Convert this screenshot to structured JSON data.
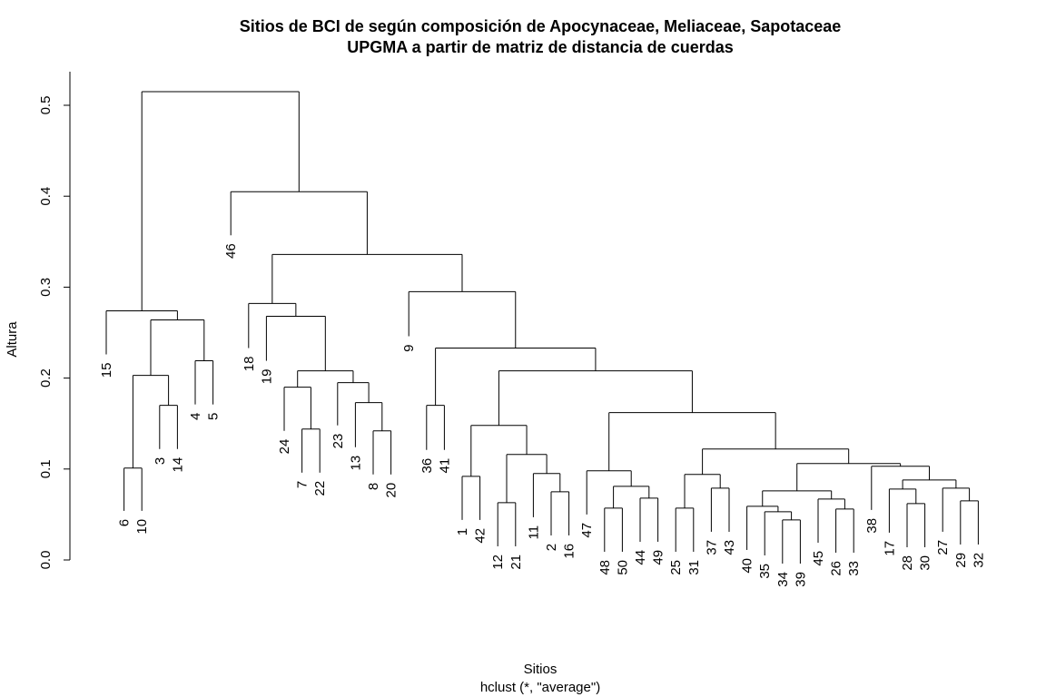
{
  "chart_data": {
    "type": "dendrogram",
    "title": "Sitios de BCI de según composición de Apocynaceae, Meliaceae, Sapotaceae",
    "subtitle": "UPGMA a partir de matriz de distancia de cuerdas",
    "xlabel": "Sitios",
    "sub_xlabel": "hclust (*, \"average\")",
    "ylabel": "Altura",
    "ylim": [
      0,
      0.52
    ],
    "yticks": [
      "0.0",
      "0.1",
      "0.2",
      "0.3",
      "0.4",
      "0.5"
    ],
    "yticks_values": [
      0,
      0.1,
      0.2,
      0.3,
      0.4,
      0.5
    ],
    "leaf_order": [
      "15",
      "6",
      "10",
      "3",
      "14",
      "4",
      "5",
      "46",
      "18",
      "19",
      "24",
      "7",
      "22",
      "23",
      "13",
      "8",
      "20",
      "9",
      "36",
      "41",
      "1",
      "42",
      "12",
      "21",
      "11",
      "2",
      "16",
      "47",
      "48",
      "50",
      "44",
      "49",
      "25",
      "31",
      "37",
      "43",
      "40",
      "35",
      "34",
      "39",
      "45",
      "26",
      "33",
      "38",
      "17",
      "28",
      "30",
      "27",
      "29",
      "32"
    ],
    "merges": [
      {
        "a": "6",
        "b": "10",
        "height": 0.101
      },
      {
        "a": "3",
        "b": "14",
        "height": 0.17
      },
      {
        "a": "m1",
        "b": "m2",
        "height": 0.203
      },
      {
        "a": "4",
        "b": "5",
        "height": 0.219
      },
      {
        "a": "m3",
        "b": "m4",
        "height": 0.264
      },
      {
        "a": "15",
        "b": "m5",
        "height": 0.274
      },
      {
        "a": "7",
        "b": "22",
        "height": 0.144
      },
      {
        "a": "24",
        "b": "m7",
        "height": 0.19
      },
      {
        "a": "8",
        "b": "20",
        "height": 0.142
      },
      {
        "a": "13",
        "b": "m9",
        "height": 0.173
      },
      {
        "a": "23",
        "b": "m10",
        "height": 0.195
      },
      {
        "a": "m8",
        "b": "m11",
        "height": 0.208
      },
      {
        "a": "19",
        "b": "m12",
        "height": 0.268
      },
      {
        "a": "18",
        "b": "m13",
        "height": 0.282
      },
      {
        "a": "36",
        "b": "41",
        "height": 0.17
      },
      {
        "a": "1",
        "b": "42",
        "height": 0.092
      },
      {
        "a": "12",
        "b": "21",
        "height": 0.063
      },
      {
        "a": "2",
        "b": "16",
        "height": 0.075
      },
      {
        "a": "11",
        "b": "m18",
        "height": 0.095
      },
      {
        "a": "m17",
        "b": "m19",
        "height": 0.116
      },
      {
        "a": "m16",
        "b": "m20",
        "height": 0.148
      },
      {
        "a": "48",
        "b": "50",
        "height": 0.057
      },
      {
        "a": "44",
        "b": "49",
        "height": 0.068
      },
      {
        "a": "m22",
        "b": "m23",
        "height": 0.081
      },
      {
        "a": "47",
        "b": "m24",
        "height": 0.098
      },
      {
        "a": "25",
        "b": "31",
        "height": 0.057
      },
      {
        "a": "37",
        "b": "43",
        "height": 0.079
      },
      {
        "a": "m26",
        "b": "m27",
        "height": 0.094
      },
      {
        "a": "34",
        "b": "39",
        "height": 0.044
      },
      {
        "a": "35",
        "b": "m29",
        "height": 0.053
      },
      {
        "a": "40",
        "b": "m30",
        "height": 0.059
      },
      {
        "a": "26",
        "b": "33",
        "height": 0.056
      },
      {
        "a": "45",
        "b": "m32",
        "height": 0.067
      },
      {
        "a": "m31",
        "b": "m33",
        "height": 0.076
      },
      {
        "a": "28",
        "b": "30",
        "height": 0.062
      },
      {
        "a": "17",
        "b": "m35",
        "height": 0.078
      },
      {
        "a": "29",
        "b": "32",
        "height": 0.065
      },
      {
        "a": "27",
        "b": "m37",
        "height": 0.079
      },
      {
        "a": "m36",
        "b": "m38",
        "height": 0.088
      },
      {
        "a": "38",
        "b": "m39",
        "height": 0.103
      },
      {
        "a": "m34",
        "b": "m40",
        "height": 0.106
      },
      {
        "a": "m28",
        "b": "m41",
        "height": 0.122
      },
      {
        "a": "m25",
        "b": "m42",
        "height": 0.162
      },
      {
        "a": "m21",
        "b": "m43",
        "height": 0.208
      },
      {
        "a": "m15",
        "b": "m44",
        "height": 0.233
      },
      {
        "a": "9",
        "b": "m45",
        "height": 0.295
      },
      {
        "a": "m14",
        "b": "m46",
        "height": 0.336
      },
      {
        "a": "46",
        "b": "m47",
        "height": 0.405
      },
      {
        "a": "m6",
        "b": "m48",
        "height": 0.515
      }
    ],
    "leaf_heights": {
      "15": 0.226,
      "6": 0.054,
      "10": 0.054,
      "3": 0.122,
      "14": 0.122,
      "4": 0.171,
      "5": 0.171,
      "46": 0.357,
      "18": 0.233,
      "19": 0.219,
      "24": 0.142,
      "7": 0.096,
      "22": 0.096,
      "23": 0.148,
      "13": 0.124,
      "8": 0.094,
      "20": 0.094,
      "9": 0.246,
      "36": 0.121,
      "41": 0.121,
      "1": 0.044,
      "42": 0.044,
      "12": 0.015,
      "21": 0.015,
      "11": 0.047,
      "2": 0.027,
      "16": 0.027,
      "47": 0.05,
      "48": 0.009,
      "50": 0.009,
      "44": 0.02,
      "49": 0.02,
      "25": 0.009,
      "31": 0.009,
      "37": 0.031,
      "43": 0.031,
      "40": 0.011,
      "35": 0.005,
      "34": -0.004,
      "39": -0.004,
      "45": 0.019,
      "26": 0.008,
      "33": 0.008,
      "38": 0.055,
      "17": 0.03,
      "28": 0.014,
      "30": 0.014,
      "27": 0.031,
      "29": 0.017,
      "32": 0.017
    }
  }
}
